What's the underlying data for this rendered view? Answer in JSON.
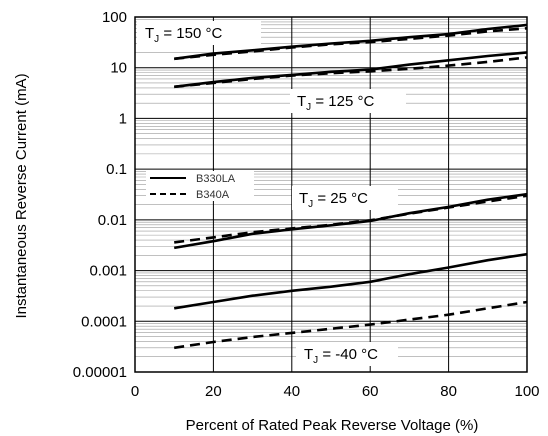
{
  "chart_data": {
    "type": "line",
    "xlabel": "Percent of Rated Peak Reverse Voltage (%)",
    "ylabel": "Instantaneous Reverse Current (mA)",
    "xlim": [
      0,
      100
    ],
    "ylim": [
      1e-05,
      100
    ],
    "yscale": "log",
    "grid": true,
    "x_ticks": [
      "0",
      "20",
      "40",
      "60",
      "80",
      "100"
    ],
    "y_ticks": [
      "0.00001",
      "0.0001",
      "0.001",
      "0.01",
      "0.1",
      "1",
      "10",
      "100"
    ],
    "legend_position": "left",
    "legend": [
      {
        "label": "B330LA",
        "style": "solid"
      },
      {
        "label": "B340A",
        "style": "dashed"
      }
    ],
    "annotations": [
      {
        "main": "T",
        "sub": "J",
        "rest": " = 150 °C"
      },
      {
        "main": "T",
        "sub": "J",
        "rest": " = 125 °C"
      },
      {
        "main": "T",
        "sub": "J",
        "rest": " = 25 °C"
      },
      {
        "main": "T",
        "sub": "J",
        "rest": " = -40 °C"
      }
    ],
    "series": [
      {
        "device": "B330LA",
        "condition": "150 °C",
        "style": "solid",
        "x": [
          10,
          20,
          30,
          40,
          50,
          60,
          70,
          80,
          90,
          100
        ],
        "y": [
          15,
          19,
          22,
          26,
          30,
          34,
          40,
          46,
          58,
          70
        ]
      },
      {
        "device": "B340A",
        "condition": "150 °C",
        "style": "dashed",
        "x": [
          10,
          20,
          30,
          40,
          50,
          60,
          70,
          80,
          90,
          100
        ],
        "y": [
          15,
          18,
          21,
          25,
          29,
          32,
          37,
          43,
          52,
          60
        ]
      },
      {
        "device": "B330LA",
        "condition": "125 °C",
        "style": "solid",
        "x": [
          10,
          20,
          30,
          40,
          50,
          60,
          70,
          80,
          90,
          100
        ],
        "y": [
          4.2,
          5.2,
          6.3,
          7.2,
          8.3,
          9.2,
          11.5,
          14,
          17,
          20
        ]
      },
      {
        "device": "B340A",
        "condition": "125 °C",
        "style": "dashed",
        "x": [
          10,
          20,
          30,
          40,
          50,
          60,
          70,
          80,
          90,
          100
        ],
        "y": [
          4.2,
          5,
          6,
          7,
          7.8,
          8.5,
          9.5,
          11,
          13,
          16
        ]
      },
      {
        "device": "B330LA",
        "condition": "25 °C",
        "style": "solid",
        "x": [
          10,
          20,
          30,
          40,
          50,
          60,
          70,
          80,
          90,
          100
        ],
        "y": [
          0.0028,
          0.0038,
          0.0053,
          0.0065,
          0.0078,
          0.0095,
          0.0135,
          0.018,
          0.025,
          0.032
        ]
      },
      {
        "device": "B340A",
        "condition": "25 °C",
        "style": "dashed",
        "x": [
          10,
          20,
          30,
          40,
          50,
          60,
          70,
          80,
          90,
          100
        ],
        "y": [
          0.0036,
          0.0045,
          0.0057,
          0.0068,
          0.008,
          0.0098,
          0.0132,
          0.0175,
          0.023,
          0.03
        ]
      },
      {
        "device": "B330LA",
        "condition": "-40 °C",
        "style": "solid",
        "x": [
          10,
          20,
          30,
          40,
          50,
          60,
          70,
          80,
          90,
          100
        ],
        "y": [
          0.00018,
          0.00024,
          0.00032,
          0.0004,
          0.00048,
          0.0006,
          0.00085,
          0.00115,
          0.0016,
          0.0021
        ]
      },
      {
        "device": "B340A",
        "condition": "-40 °C",
        "style": "dashed",
        "x": [
          10,
          20,
          30,
          40,
          50,
          60,
          70,
          80,
          90,
          100
        ],
        "y": [
          3e-05,
          3.9e-05,
          4.9e-05,
          5.9e-05,
          7.1e-05,
          8.6e-05,
          0.000108,
          0.000135,
          0.00018,
          0.00024
        ]
      }
    ]
  }
}
